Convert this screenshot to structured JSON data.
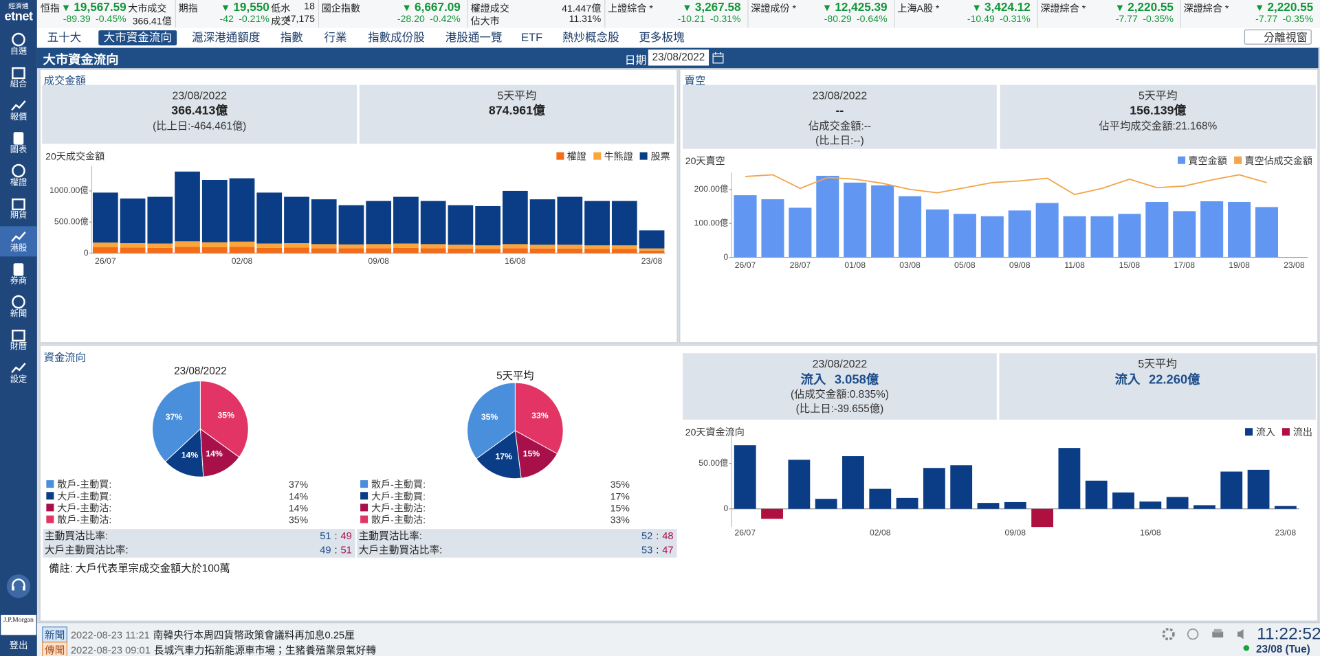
{
  "ticker": [
    {
      "name": "恒指",
      "price": "19,567.59",
      "change": "-89.39",
      "pct": "-0.45%",
      "stats": [
        {
          "label": "大市成交",
          "value": "366.41億"
        }
      ]
    },
    {
      "name": "期指",
      "price": "19,550",
      "change": "-42",
      "pct": "-0.21%",
      "stats": [
        {
          "label": "低水",
          "value": "18"
        },
        {
          "label": "成交",
          "value": "47,175"
        }
      ]
    },
    {
      "name": "國企指數",
      "price": "6,667.09",
      "change": "-28.20",
      "pct": "-0.42%"
    },
    {
      "stats": [
        {
          "label": "權證成交",
          "value": "41.447億"
        },
        {
          "label": "佔大市",
          "value": "11.31%"
        }
      ]
    },
    {
      "name": "上證綜合 *",
      "price": "3,267.58",
      "change": "-10.21",
      "pct": "-0.31%"
    },
    {
      "name": "深證成份 *",
      "price": "12,425.39",
      "change": "-80.29",
      "pct": "-0.64%"
    },
    {
      "name": "上海A股 *",
      "price": "3,424.12",
      "change": "-10.49",
      "pct": "-0.31%"
    },
    {
      "name": "深證綜合 *",
      "price": "2,220.55",
      "change": "-7.77",
      "pct": "-0.35%"
    },
    {
      "name": "深證綜合 *",
      "price": "2,220.55",
      "change": "-7.77",
      "pct": "-0.35%"
    }
  ],
  "sidebar": {
    "brand_small": "經濟通",
    "brand": "etnet",
    "items": [
      "自選",
      "組合",
      "報價",
      "圖表",
      "權證",
      "期貨",
      "港股",
      "券商",
      "新聞",
      "財曆",
      "設定"
    ],
    "active": 6,
    "sponsor": "J.P.Morgan",
    "logout": "登出"
  },
  "tabs": {
    "items": [
      "五十大",
      "大市資金流向",
      "滬深港通額度",
      "指數",
      "行業",
      "指數成份股",
      "港股通一覽",
      "ETF",
      "熱炒概念股",
      "更多板塊"
    ],
    "active": 1,
    "detach": "分離視窗"
  },
  "header": {
    "title": "大市資金流向",
    "date_label": "日期",
    "date": "23/08/2022"
  },
  "turnover": {
    "title": "成交金額",
    "boxes": [
      [
        "23/08/2022",
        "366.413億",
        "(比上日:-464.461億)"
      ],
      [
        "5天平均",
        "874.961億"
      ]
    ],
    "chart_data": {
      "type": "bar",
      "title": "20天成交金額",
      "stacked": true,
      "categories": [
        "26/07",
        null,
        null,
        null,
        null,
        "02/08",
        null,
        null,
        null,
        null,
        "09/08",
        null,
        null,
        null,
        null,
        "16/08",
        null,
        null,
        null,
        null,
        "23/08"
      ],
      "series": [
        {
          "name": "權證",
          "color": "#f26c1a",
          "values": [
            95,
            90,
            85,
            100,
            95,
            100,
            85,
            90,
            80,
            80,
            80,
            85,
            80,
            75,
            70,
            80,
            75,
            75,
            70,
            70,
            41
          ]
        },
        {
          "name": "牛熊證",
          "color": "#fba53b",
          "values": [
            75,
            70,
            70,
            90,
            80,
            85,
            70,
            70,
            65,
            60,
            65,
            70,
            65,
            60,
            55,
            65,
            60,
            60,
            55,
            55,
            35
          ]
        },
        {
          "name": "股票",
          "color": "#0b3d86",
          "values": [
            803,
            718,
            750,
            1121,
            1001,
            1018,
            818,
            745,
            720,
            630,
            693,
            750,
            693,
            635,
            632,
            855,
            730,
            770,
            713,
            713,
            290
          ]
        }
      ],
      "ylim": [
        0,
        1400
      ],
      "yticks": [
        0,
        {
          "value": 500,
          "label": "500.00億"
        },
        {
          "value": 1000,
          "label": "1000.00億"
        }
      ]
    }
  },
  "short": {
    "title": "賣空",
    "boxes": [
      [
        "23/08/2022",
        "--",
        "佔成交金額:--",
        "(比上日:--)"
      ],
      [
        "5天平均",
        "156.139億",
        "佔平均成交金額:21.168%"
      ]
    ],
    "chart_data": {
      "type": "bar",
      "title": "20天賣空",
      "categories": [
        "26/07",
        null,
        "28/07",
        null,
        "01/08",
        null,
        "03/08",
        null,
        "05/08",
        null,
        "09/08",
        null,
        "11/08",
        null,
        "15/08",
        null,
        "17/08",
        null,
        "19/08",
        null,
        "23/08"
      ],
      "series": [
        {
          "name": "賣空金額",
          "color": "#6197f2",
          "values": [
            183,
            171,
            146,
            240,
            220,
            212,
            180,
            141,
            128,
            121,
            138,
            160,
            121,
            121,
            128,
            163,
            136,
            165,
            163,
            148,
            null
          ]
        },
        {
          "name": "賣空佔成交金額",
          "color": "#f2a54b",
          "type": "line",
          "axis": "y2",
          "values": [
            23.8,
            24.3,
            20.3,
            23.5,
            23,
            21.8,
            20,
            19,
            20.5,
            22,
            22.5,
            23.3,
            18.5,
            20.3,
            23,
            20.5,
            21,
            22.8,
            24.3,
            22,
            null
          ]
        }
      ],
      "ylim": [
        0,
        250
      ],
      "yticks": [
        0,
        {
          "value": 100,
          "label": "100.00億"
        },
        {
          "value": 200,
          "label": "200.00億"
        }
      ],
      "y2lim": [
        0,
        25
      ]
    }
  },
  "funds": {
    "title": "資金流向",
    "note": "備註: 大戶代表單宗成交金額大於100萬",
    "ratio_separator": ":",
    "pies": [
      {
        "type": "pie",
        "title": "23/08/2022",
        "categories": [
          "散戶-主動買:",
          "大戶-主動買:",
          "大戶-主動沽:",
          "散戶-主動沽:"
        ],
        "values": [
          37,
          14,
          14,
          35
        ],
        "value_labels": [
          "37%",
          "14%",
          "14%",
          "35%"
        ],
        "colors": [
          "#4a8fdb",
          "#0b3d86",
          "#a8104a",
          "#e23565"
        ],
        "ratios": [
          {
            "label": "主動買沽比率:",
            "buy": "51",
            "sell": "49"
          },
          {
            "label": "大戶主動買沽比率:",
            "buy": "49",
            "sell": "51"
          }
        ]
      },
      {
        "type": "pie",
        "title": "5天平均",
        "categories": [
          "散戶-主動買:",
          "大戶-主動買:",
          "大戶-主動沽:",
          "散戶-主動沽:"
        ],
        "values": [
          35,
          17,
          15,
          33
        ],
        "value_labels": [
          "35%",
          "17%",
          "15%",
          "33%"
        ],
        "colors": [
          "#4a8fdb",
          "#0b3d86",
          "#a8104a",
          "#e23565"
        ],
        "ratios": [
          {
            "label": "主動買沽比率:",
            "buy": "52",
            "sell": "48"
          },
          {
            "label": "大戶主動買沽比率:",
            "buy": "53",
            "sell": "47"
          }
        ]
      }
    ],
    "boxes": [
      [
        "23/08/2022",
        "流入 3.058億",
        "(佔成交金額:0.835%)",
        "(比上日:-39.655億)"
      ],
      [
        "5天平均",
        "流入 22.260億"
      ]
    ],
    "chart_data": {
      "type": "bar",
      "title": "20天資金流向",
      "categories": [
        "26/07",
        null,
        null,
        null,
        null,
        "02/08",
        null,
        null,
        null,
        null,
        "09/08",
        null,
        null,
        null,
        null,
        "16/08",
        null,
        null,
        null,
        null,
        "23/08"
      ],
      "series": [
        {
          "name": "流入",
          "color": "#0b3d86",
          "values": [
            70,
            null,
            54,
            11,
            58,
            22,
            12,
            45,
            48,
            6.5,
            7.4,
            null,
            67,
            31,
            18,
            8,
            13,
            4,
            41,
            43,
            3.058
          ]
        },
        {
          "name": "流出",
          "color": "#b0103f",
          "values": [
            null,
            -11,
            null,
            null,
            null,
            null,
            null,
            null,
            null,
            null,
            null,
            -20,
            null,
            null,
            null,
            null,
            null,
            null,
            null,
            null,
            null
          ]
        }
      ],
      "ylim": [
        -20,
        80
      ],
      "yticks": [
        0,
        {
          "value": 50,
          "label": "50.00億"
        }
      ]
    }
  },
  "footer": {
    "news": [
      {
        "tag": "新聞",
        "time": "2022-08-23 11:21",
        "text": "南韓央行本周四貨幣政策會議料再加息0.25厘"
      },
      {
        "tag": "傳聞",
        "time": "2022-08-23 09:01",
        "text": "長城汽車力拓新能源車市場；生豬養殖業景氣好轉"
      }
    ],
    "clock": "11:22:52",
    "date": "23/08 (Tue)"
  }
}
